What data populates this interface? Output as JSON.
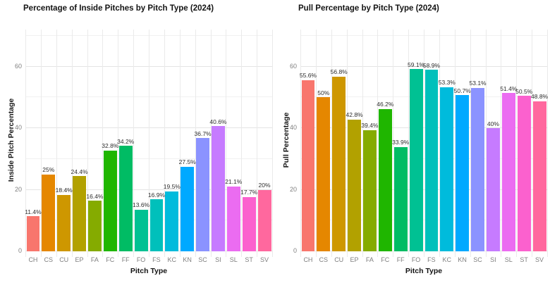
{
  "chart_data": [
    {
      "type": "bar",
      "title": "Percentage of Inside Pitches by Pitch Type (2024)",
      "xlabel": "Pitch Type",
      "ylabel": "Inside Pitch Percentage",
      "categories": [
        "CH",
        "CS",
        "CU",
        "EP",
        "FA",
        "FC",
        "FF",
        "FO",
        "FS",
        "KC",
        "KN",
        "SC",
        "SI",
        "SL",
        "ST",
        "SV"
      ],
      "values": [
        11.4,
        25,
        18.4,
        24.4,
        16.4,
        32.8,
        34.2,
        13.6,
        16.9,
        19.5,
        27.5,
        36.7,
        40.6,
        21.1,
        17.7,
        20
      ],
      "value_labels": [
        "11.4%",
        "25%",
        "18.4%",
        "24.4%",
        "16.4%",
        "32.8%",
        "34.2%",
        "13.6%",
        "16.9%",
        "19.5%",
        "27.5%",
        "36.7%",
        "40.6%",
        "21.1%",
        "17.7%",
        "20%"
      ],
      "bar_colors": [
        "#F8766D",
        "#E58700",
        "#CE9700",
        "#B2A100",
        "#85AB00",
        "#1FB600",
        "#00BC64",
        "#00C193",
        "#00C0BB",
        "#00BBDC",
        "#00A9FF",
        "#8B93FF",
        "#C67BFF",
        "#EB6CF1",
        "#FB61CE",
        "#FF689E"
      ],
      "yticks": [
        0,
        20,
        40,
        60
      ],
      "y_minor": [
        10,
        30,
        50,
        70
      ],
      "ylim": [
        0,
        72
      ],
      "grid": true,
      "legend": false
    },
    {
      "type": "bar",
      "title": "Pull Percentage by Pitch Type (2024)",
      "xlabel": "Pitch Type",
      "ylabel": "Pull Percentage",
      "categories": [
        "CH",
        "CS",
        "CU",
        "EP",
        "FA",
        "FC",
        "FF",
        "FO",
        "FS",
        "KC",
        "KN",
        "SC",
        "SI",
        "SL",
        "ST",
        "SV"
      ],
      "values": [
        55.6,
        50,
        56.8,
        42.8,
        39.4,
        46.2,
        33.9,
        59.1,
        58.9,
        53.3,
        50.7,
        53.1,
        40,
        51.4,
        50.5,
        48.8
      ],
      "value_labels": [
        "55.6%",
        "50%",
        "56.8%",
        "42.8%",
        "39.4%",
        "46.2%",
        "33.9%",
        "59.1%",
        "58.9%",
        "53.3%",
        "50.7%",
        "53.1%",
        "40%",
        "51.4%",
        "50.5%",
        "48.8%"
      ],
      "bar_colors": [
        "#F8766D",
        "#E58700",
        "#CE9700",
        "#B2A100",
        "#85AB00",
        "#1FB600",
        "#00BC64",
        "#00C193",
        "#00C0BB",
        "#00BBDC",
        "#00A9FF",
        "#8B93FF",
        "#C67BFF",
        "#EB6CF1",
        "#FB61CE",
        "#FF689E"
      ],
      "yticks": [
        0,
        20,
        40,
        60
      ],
      "y_minor": [
        10,
        30,
        50,
        70
      ],
      "ylim": [
        0,
        72
      ],
      "grid": true,
      "legend": false
    }
  ],
  "style_colors": {
    "background": "#ffffff",
    "grid_major": "#e4e4e4",
    "grid_minor": "#f1f1f1",
    "tick_text": "#7f7f7f",
    "label_text": "#141414",
    "value_text": "#2e2e2e"
  }
}
